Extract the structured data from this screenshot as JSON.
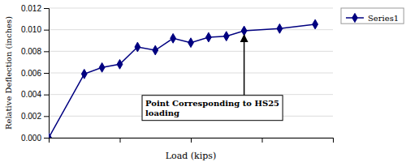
{
  "chart_data": {
    "type": "line",
    "xlabel": "Load (kips)",
    "ylabel": "Relative Deflection (inches)",
    "x": [
      0,
      2,
      3,
      4,
      5,
      6,
      7,
      8,
      9,
      10,
      11,
      13,
      15
    ],
    "series": [
      {
        "name": "Series1",
        "color": "#000080",
        "marker": "diamond",
        "values": [
          0,
          0.0059,
          0.0065,
          0.0068,
          0.0084,
          0.0081,
          0.0092,
          0.0088,
          0.0093,
          0.0094,
          0.0099,
          0.0101,
          0.0105
        ]
      }
    ],
    "xlim": [
      0,
      16
    ],
    "ylim": [
      0,
      0.012
    ],
    "xticks": [
      0,
      4,
      8,
      12,
      16
    ],
    "yticks": [
      {
        "value": 0,
        "label": "0.000"
      },
      {
        "value": 0.002,
        "label": "0.002"
      },
      {
        "value": 0.004,
        "label": "0.004"
      },
      {
        "value": 0.006,
        "label": "0.006"
      },
      {
        "value": 0.008,
        "label": "0.008"
      },
      {
        "value": 0.01,
        "label": "0.010"
      },
      {
        "value": 0.012,
        "label": "0.012"
      }
    ],
    "tick_labels": "y",
    "grid": "y",
    "legend": "right",
    "annotations": [
      {
        "text": "Point Corresponding to HS25\nloading",
        "x": 11,
        "y": 0.0099
      }
    ]
  }
}
